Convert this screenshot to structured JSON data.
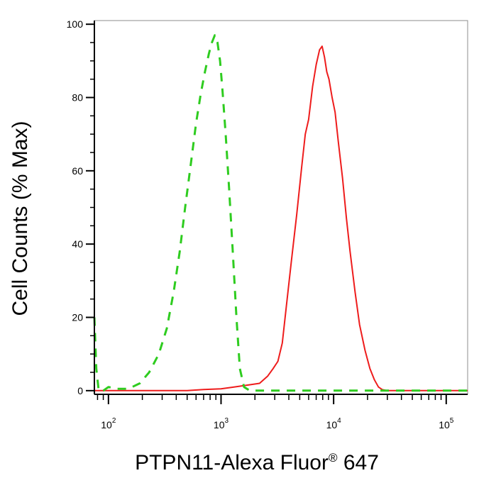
{
  "chart_data": {
    "type": "line",
    "title": "",
    "xlabel": "PTPN11-Alexa Fluor® 647",
    "xlabel_main": "PTPN11-Alexa Fluor",
    "xlabel_mark": "®",
    "xlabel_tail": " 647",
    "ylabel": "Cell Counts (% Max)",
    "xscale": "log",
    "xlim": [
      75,
      155000
    ],
    "ylim": [
      -1,
      101
    ],
    "grid": false,
    "legend": "none",
    "y_ticks": [
      {
        "value": 0,
        "label": "0"
      },
      {
        "value": 20,
        "label": "20"
      },
      {
        "value": 40,
        "label": "40"
      },
      {
        "value": 60,
        "label": "60"
      },
      {
        "value": 80,
        "label": "80"
      },
      {
        "value": 100,
        "label": "100"
      }
    ],
    "x_ticks": [
      {
        "value": 100,
        "base": "10",
        "exp": "2"
      },
      {
        "value": 1000,
        "base": "10",
        "exp": "3"
      },
      {
        "value": 10000,
        "base": "10",
        "exp": "4"
      },
      {
        "value": 100000,
        "base": "10",
        "exp": "5"
      }
    ],
    "series": [
      {
        "color": "#ee1c1c",
        "style": "solid",
        "x": [
          75,
          500,
          700,
          1000,
          1300,
          1700,
          2200,
          2600,
          2900,
          3200,
          3500,
          3800,
          4200,
          4700,
          5200,
          5600,
          6000,
          6500,
          7000,
          7500,
          7900,
          8300,
          8700,
          9100,
          9700,
          10300,
          11000,
          12000,
          13000,
          14000,
          15500,
          17000,
          19000,
          21000,
          23000,
          25000,
          27000,
          30000,
          50000,
          100000,
          155000
        ],
        "y": [
          0,
          0,
          0.3,
          0.5,
          1,
          1.5,
          2,
          4,
          6,
          8,
          13,
          23,
          35,
          48,
          61,
          70,
          74,
          83,
          89,
          93,
          94,
          91,
          87,
          85,
          80,
          76,
          68,
          58,
          47,
          38,
          27,
          18,
          11,
          6,
          3,
          1,
          0.3,
          0,
          0,
          0,
          0
        ]
      },
      {
        "color": "#2ecc1f",
        "style": "dashed",
        "x": [
          75,
          78,
          82,
          90,
          100,
          120,
          150,
          190,
          230,
          280,
          330,
          380,
          430,
          480,
          540,
          600,
          660,
          720,
          780,
          830,
          880,
          930,
          980,
          1030,
          1100,
          1180,
          1270,
          1370,
          1470,
          1600,
          1800,
          2200,
          3000,
          10000,
          100000,
          155000
        ],
        "y": [
          20,
          6,
          0,
          0,
          1,
          0.5,
          0.5,
          2,
          5,
          10,
          17,
          27,
          38,
          50,
          62,
          73,
          81,
          87,
          92,
          95,
          97,
          95,
          90,
          82,
          70,
          55,
          38,
          20,
          6,
          1,
          0,
          0,
          0,
          0,
          0,
          0
        ]
      }
    ]
  }
}
